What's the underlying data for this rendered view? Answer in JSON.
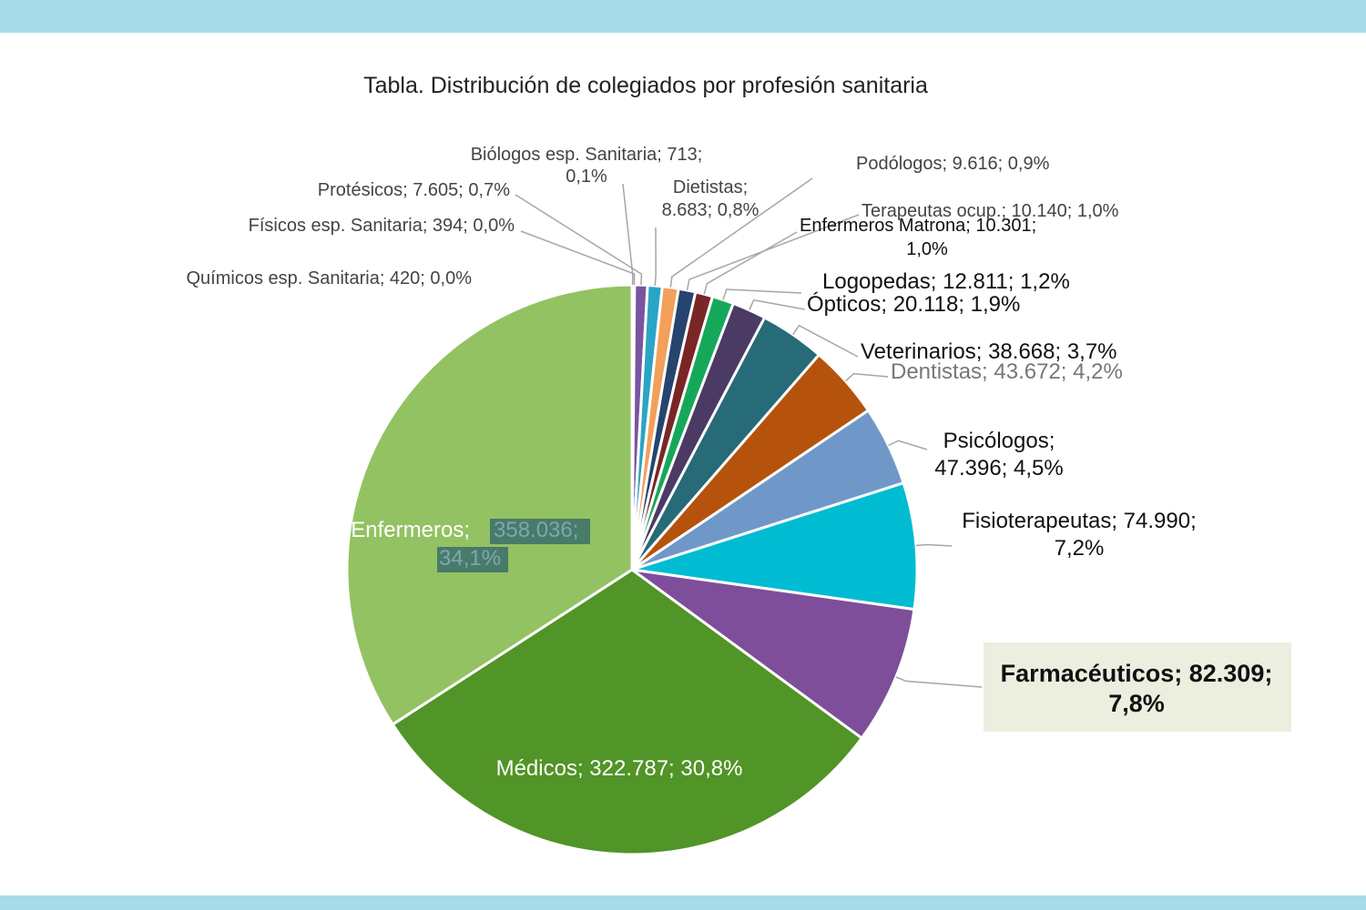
{
  "colors": {
    "band": "#a6dbea",
    "background": "#ffffff"
  },
  "chart_data": {
    "type": "pie",
    "title": "Tabla. Distribución de colegiados por profesión sanitaria",
    "start_angle_deg": 0,
    "direction": "clockwise",
    "slices": [
      {
        "label": "Enfermeros",
        "value": 358036,
        "value_text": "358.036",
        "percent_text": "34,1%",
        "color": "#93c262"
      },
      {
        "label": "Médicos",
        "value": 322787,
        "value_text": "322.787",
        "percent_text": "30,8%",
        "color": "#519427"
      },
      {
        "label": "Farmacéuticos",
        "value": 82309,
        "value_text": "82.309",
        "percent_text": "7,8%",
        "color": "#7e4e9a"
      },
      {
        "label": "Fisioterapeutas",
        "value": 74990,
        "value_text": "74.990",
        "percent_text": "7,2%",
        "color": "#00bcd2"
      },
      {
        "label": "Psicólogos",
        "value": 47396,
        "value_text": "47.396",
        "percent_text": "4,5%",
        "color": "#6f98c9"
      },
      {
        "label": "Dentistas",
        "value": 43672,
        "value_text": "43.672",
        "percent_text": "4,2%",
        "color": "#b5530c"
      },
      {
        "label": "Veterinarios",
        "value": 38668,
        "value_text": "38.668",
        "percent_text": "3,7%",
        "color": "#276a78"
      },
      {
        "label": "Ópticos",
        "value": 20118,
        "value_text": "20.118",
        "percent_text": "1,9%",
        "color": "#4b3a63"
      },
      {
        "label": "Logopedas",
        "value": 12811,
        "value_text": "12.811",
        "percent_text": "1,2%",
        "color": "#16a85a"
      },
      {
        "label": "Enfermeros Matrona",
        "value": 10301,
        "value_text": "10.301",
        "percent_text": "1,0%",
        "color": "#7a2626"
      },
      {
        "label": "Terapeutas ocup.",
        "value": 10140,
        "value_text": "10.140",
        "percent_text": "1,0%",
        "color": "#26446e"
      },
      {
        "label": "Podólogos",
        "value": 9616,
        "value_text": "9.616",
        "percent_text": "0,9%",
        "color": "#f2a05a"
      },
      {
        "label": "Dietistas",
        "value": 8683,
        "value_text": "8.683",
        "percent_text": "0,8%",
        "color": "#2aa5c6"
      },
      {
        "label": "Biólogos esp. Sanitaria",
        "value": 713,
        "value_text": "713",
        "percent_text": "0,1%",
        "color": "#6a96c8"
      },
      {
        "label": "Protésicos",
        "value": 7605,
        "value_text": "7.605",
        "percent_text": "0,7%",
        "color": "#7a54a0"
      },
      {
        "label": "Físicos esp. Sanitaria",
        "value": 394,
        "value_text": "394",
        "percent_text": "0,0%",
        "color": "#9bbb59"
      },
      {
        "label": "Químicos esp. Sanitaria",
        "value": 420,
        "value_text": "420",
        "percent_text": "0,0%",
        "color": "#c0504d"
      }
    ]
  }
}
